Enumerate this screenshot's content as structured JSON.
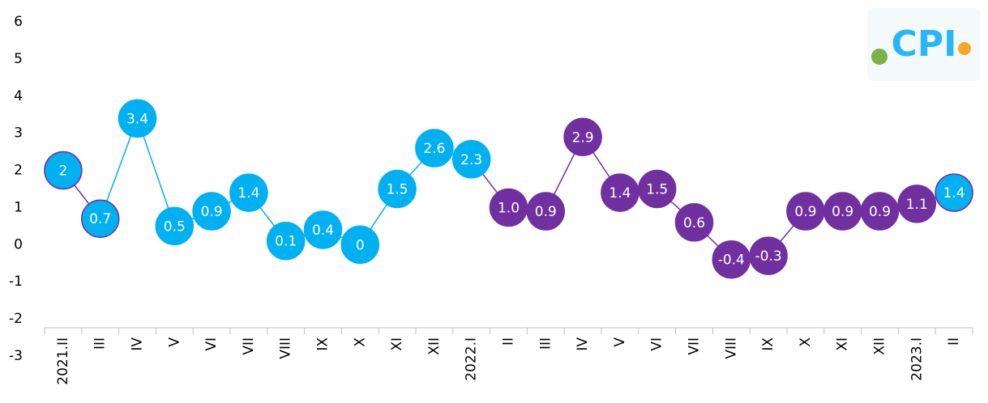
{
  "chart_data": {
    "type": "line",
    "logo_text": "CPI",
    "categories": [
      "2021.II",
      "III",
      "IV",
      "V",
      "VI",
      "VII",
      "VIII",
      "IX",
      "X",
      "XI",
      "XII",
      "2022.I",
      "II",
      "III",
      "IV",
      "V",
      "VI",
      "VII",
      "VIII",
      "IX",
      "X",
      "XI",
      "XII",
      "2023.I",
      "II"
    ],
    "values": [
      2,
      0.7,
      3.4,
      0.5,
      0.9,
      1.4,
      0.1,
      0.4,
      0,
      1.5,
      2.6,
      2.3,
      1.0,
      0.9,
      2.9,
      1.4,
      1.5,
      0.6,
      -0.4,
      -0.3,
      0.9,
      0.9,
      0.9,
      1.1,
      1.4
    ],
    "value_labels": [
      "2",
      "0.7",
      "3.4",
      "0.5",
      "0.9",
      "1.4",
      "0.1",
      "0.4",
      "0",
      "1.5",
      "2.6",
      "2.3",
      "1.0",
      "0.9",
      "2.9",
      "1.4",
      "1.5",
      "0.6",
      "-0.4",
      "-0.3",
      "0.9",
      "0.9",
      "0.9",
      "1.1",
      "1.4"
    ],
    "point_colors": [
      "#00b0f0",
      "#00b0f0",
      "#00b0f0",
      "#00b0f0",
      "#00b0f0",
      "#00b0f0",
      "#00b0f0",
      "#00b0f0",
      "#00b0f0",
      "#00b0f0",
      "#00b0f0",
      "#00b0f0",
      "#7030a0",
      "#7030a0",
      "#7030a0",
      "#7030a0",
      "#7030a0",
      "#7030a0",
      "#7030a0",
      "#7030a0",
      "#7030a0",
      "#7030a0",
      "#7030a0",
      "#7030a0",
      "#00b0f0"
    ],
    "point_border_colors": [
      "#7030a0",
      "#7030a0",
      "#00b0f0",
      "#00b0f0",
      "#00b0f0",
      "#00b0f0",
      "#00b0f0",
      "#00b0f0",
      "#00b0f0",
      "#00b0f0",
      "#00b0f0",
      "#00b0f0",
      "#7030a0",
      "#7030a0",
      "#7030a0",
      "#7030a0",
      "#7030a0",
      "#7030a0",
      "#7030a0",
      "#7030a0",
      "#7030a0",
      "#7030a0",
      "#7030a0",
      "#7030a0",
      "#7030a0"
    ],
    "segment_colors": [
      "#7030a0",
      "#00b0f0",
      "#00b0f0",
      "#00b0f0",
      "#00b0f0",
      "#00b0f0",
      "#00b0f0",
      "#00b0f0",
      "#00b0f0",
      "#00b0f0",
      "#00b0f0",
      "#7030a0",
      "#7030a0",
      "#7030a0",
      "#7030a0",
      "#7030a0",
      "#7030a0",
      "#7030a0",
      "#7030a0",
      "#7030a0",
      "#7030a0",
      "#7030a0",
      "#7030a0",
      "#7030a0"
    ],
    "ylim": [
      -3,
      6
    ],
    "yticks": [
      -3,
      -2,
      -1,
      0,
      1,
      2,
      3,
      4,
      5,
      6
    ]
  }
}
